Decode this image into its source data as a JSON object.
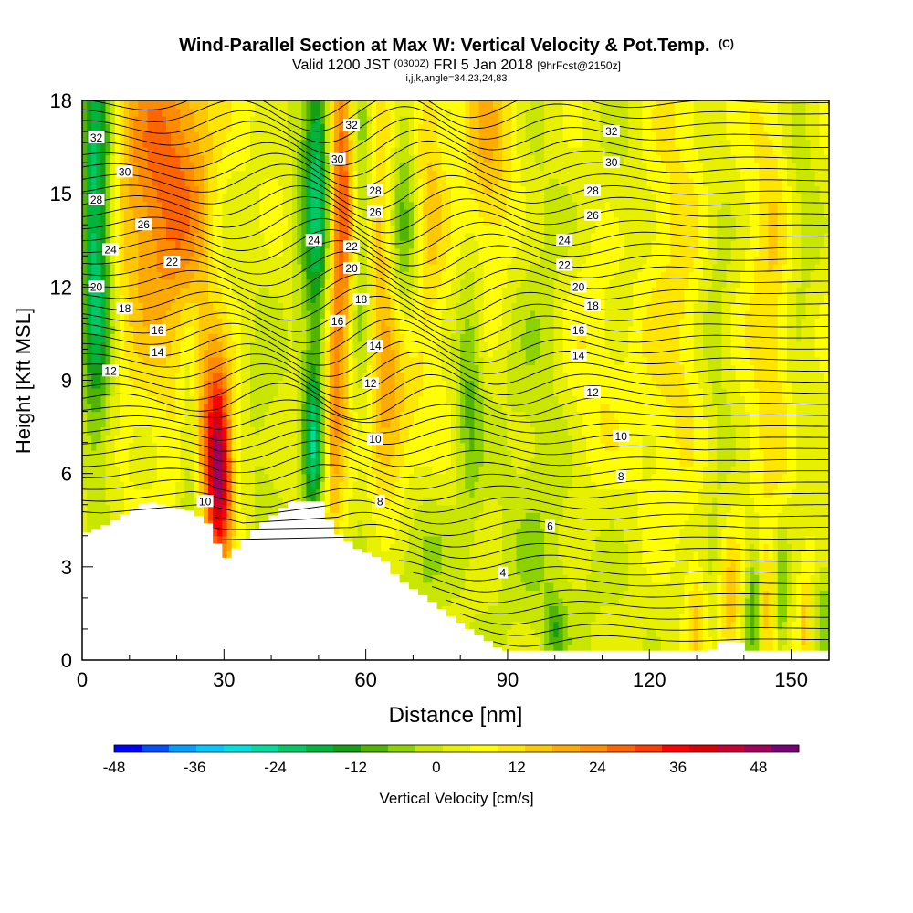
{
  "chart_data": {
    "type": "heatmap",
    "title": "Wind-Parallel Section at Max W: Vertical Velocity & Pot.Temp.",
    "title_units": "(C)",
    "subtitle_valid": "Valid 1200 JST",
    "subtitle_utc": "(0300Z)",
    "subtitle_date": "FRI 5 Jan 2018",
    "subtitle_fcst": "[9hrFcst@2150z]",
    "subtitle_indices": "i,j,k,angle=34,23,24,83",
    "xlabel": "Distance [nm]",
    "ylabel": "Height [Kft MSL]",
    "xlim": [
      0,
      158
    ],
    "ylim": [
      0,
      18
    ],
    "x_ticks": [
      0,
      30,
      60,
      90,
      120,
      150
    ],
    "x_tick_labels": [
      "0",
      "30",
      "60",
      "90",
      "120",
      "150"
    ],
    "y_ticks": [
      0,
      3,
      6,
      9,
      12,
      15,
      18
    ],
    "y_tick_labels": [
      "0",
      "3",
      "6",
      "9",
      "12",
      "15",
      "18"
    ],
    "colorbar": {
      "label": "Vertical Velocity [cm/s]",
      "min": -48,
      "max": 54,
      "step": 4,
      "tick_values": [
        -48,
        -36,
        -24,
        -12,
        0,
        12,
        24,
        36,
        48
      ],
      "tick_labels": [
        "-48",
        "-36",
        "-24",
        "-12",
        "0",
        "12",
        "24",
        "36",
        "48"
      ],
      "colors": [
        "#0000ff",
        "#0050ff",
        "#00a0ff",
        "#00c8ff",
        "#00e0e0",
        "#00dca0",
        "#00c864",
        "#00b43c",
        "#14a014",
        "#50b400",
        "#8cd200",
        "#c8e600",
        "#e6f000",
        "#ffff00",
        "#ffe600",
        "#ffc800",
        "#ffaa00",
        "#ff8c00",
        "#ff6400",
        "#ff3c00",
        "#ff0000",
        "#dc0000",
        "#c80032",
        "#a0005a",
        "#780078"
      ]
    },
    "terrain_kft": [
      {
        "x": 0,
        "h": 4.1
      },
      {
        "x": 5,
        "h": 4.4
      },
      {
        "x": 8,
        "h": 4.7
      },
      {
        "x": 10,
        "h": 4.9
      },
      {
        "x": 13,
        "h": 5.1
      },
      {
        "x": 22,
        "h": 4.8
      },
      {
        "x": 25,
        "h": 4.5
      },
      {
        "x": 27,
        "h": 4.2
      },
      {
        "x": 28,
        "h": 3.5
      },
      {
        "x": 29,
        "h": 3.2
      },
      {
        "x": 31,
        "h": 3.5
      },
      {
        "x": 33,
        "h": 3.8
      },
      {
        "x": 36,
        "h": 4.3
      },
      {
        "x": 40,
        "h": 4.7
      },
      {
        "x": 43,
        "h": 5.1
      },
      {
        "x": 50,
        "h": 5.1
      },
      {
        "x": 52,
        "h": 4.2
      },
      {
        "x": 57,
        "h": 3.6
      },
      {
        "x": 63,
        "h": 3.2
      },
      {
        "x": 66,
        "h": 2.6
      },
      {
        "x": 72,
        "h": 2.0
      },
      {
        "x": 78,
        "h": 1.3
      },
      {
        "x": 84,
        "h": 0.7
      },
      {
        "x": 88,
        "h": 0.3
      },
      {
        "x": 91,
        "h": 0.3
      },
      {
        "x": 132,
        "h": 0.3
      },
      {
        "x": 134,
        "h": 0.6
      },
      {
        "x": 138,
        "h": 0.6
      },
      {
        "x": 140,
        "h": 0.3
      },
      {
        "x": 158,
        "h": 0.3
      }
    ],
    "w_features": [
      {
        "x": 3,
        "z": 14.0,
        "sx": 2.5,
        "sz": 5.0,
        "w": -30
      },
      {
        "x": 18,
        "z": 15.5,
        "sx": 8.0,
        "sz": 4.0,
        "w": 22
      },
      {
        "x": 30,
        "z": 13.0,
        "sx": 3.5,
        "sz": 4.5,
        "w": -6
      },
      {
        "x": 23,
        "z": 7.0,
        "sx": 1.8,
        "sz": 2.5,
        "w": -16
      },
      {
        "x": 29,
        "z": 6.0,
        "sx": 1.8,
        "sz": 2.0,
        "w": 34
      },
      {
        "x": 27,
        "z": 7.5,
        "sx": 3.5,
        "sz": 2.5,
        "w": 18
      },
      {
        "x": 40,
        "z": 8.0,
        "sx": 4.0,
        "sz": 5.0,
        "w": -8
      },
      {
        "x": 45,
        "z": 11.0,
        "sx": 4.0,
        "sz": 5.0,
        "w": 8
      },
      {
        "x": 47,
        "z": 13.5,
        "sx": 3.0,
        "sz": 6.0,
        "w": -12
      },
      {
        "x": 50,
        "z": 15.5,
        "sx": 2.0,
        "sz": 4.0,
        "w": -22
      },
      {
        "x": 49,
        "z": 6.8,
        "sx": 1.5,
        "sz": 2.0,
        "w": -22
      },
      {
        "x": 55,
        "z": 15.0,
        "sx": 2.0,
        "sz": 4.5,
        "w": 26
      },
      {
        "x": 53,
        "z": 7.5,
        "sx": 1.5,
        "sz": 2.5,
        "w": 14
      },
      {
        "x": 59,
        "z": 14.0,
        "sx": 2.0,
        "sz": 5.0,
        "w": -14
      },
      {
        "x": 63,
        "z": 13.0,
        "sx": 2.5,
        "sz": 5.0,
        "w": 12
      },
      {
        "x": 68,
        "z": 13.5,
        "sx": 2.5,
        "sz": 4.5,
        "w": -14
      },
      {
        "x": 73,
        "z": 15.0,
        "sx": 2.5,
        "sz": 4.0,
        "w": 10
      },
      {
        "x": 67,
        "z": 8.0,
        "sx": 3.0,
        "sz": 2.5,
        "w": 16
      },
      {
        "x": 70,
        "z": 3.5,
        "sx": 5.0,
        "sz": 2.0,
        "w": -8
      },
      {
        "x": 82,
        "z": 9.0,
        "sx": 2.0,
        "sz": 3.0,
        "w": -12
      },
      {
        "x": 86,
        "z": 16.5,
        "sx": 4.0,
        "sz": 3.0,
        "w": 12
      },
      {
        "x": 95,
        "z": 7.5,
        "sx": 8.0,
        "sz": 5.0,
        "w": -4
      },
      {
        "x": 98,
        "z": 12.0,
        "sx": 5.0,
        "sz": 6.0,
        "w": -4
      },
      {
        "x": 115,
        "z": 15.0,
        "sx": 5.0,
        "sz": 6.0,
        "w": -6
      },
      {
        "x": 110,
        "z": 2.0,
        "sx": 25.0,
        "sz": 2.5,
        "w": -4
      },
      {
        "x": 108,
        "z": 9.5,
        "sx": 6.0,
        "sz": 3.0,
        "w": 6
      },
      {
        "x": 125,
        "z": 12.0,
        "sx": 8.0,
        "sz": 7.0,
        "w": 6
      },
      {
        "x": 134,
        "z": 11.0,
        "sx": 3.0,
        "sz": 6.0,
        "w": -8
      },
      {
        "x": 146,
        "z": 12.0,
        "sx": 3.0,
        "sz": 6.0,
        "w": 8
      },
      {
        "x": 152,
        "z": 15.0,
        "sx": 3.0,
        "sz": 6.0,
        "w": -6
      },
      {
        "x": 130,
        "z": 1.5,
        "sx": 1.5,
        "sz": 1.5,
        "w": 10
      },
      {
        "x": 137,
        "z": 1.8,
        "sx": 1.5,
        "sz": 1.5,
        "w": 14
      },
      {
        "x": 142,
        "z": 1.8,
        "sx": 1.2,
        "sz": 1.5,
        "w": -14
      },
      {
        "x": 145,
        "z": 1.8,
        "sx": 1.0,
        "sz": 1.5,
        "w": 10
      },
      {
        "x": 148,
        "z": 1.8,
        "sx": 1.0,
        "sz": 1.5,
        "w": -12
      },
      {
        "x": 153,
        "z": 1.2,
        "sx": 1.0,
        "sz": 1.2,
        "w": 12
      },
      {
        "x": 157,
        "z": 1.5,
        "sx": 1.5,
        "sz": 1.5,
        "w": -10
      },
      {
        "x": 100,
        "z": 1.0,
        "sx": 1.5,
        "sz": 0.8,
        "w": -10
      }
    ],
    "theta_labels": [
      {
        "x": 3,
        "z": 16.8,
        "text": "32"
      },
      {
        "x": 9,
        "z": 15.7,
        "text": "30"
      },
      {
        "x": 3,
        "z": 14.8,
        "text": "28"
      },
      {
        "x": 13,
        "z": 14.0,
        "text": "26"
      },
      {
        "x": 6,
        "z": 13.2,
        "text": "24"
      },
      {
        "x": 19,
        "z": 12.8,
        "text": "22"
      },
      {
        "x": 3,
        "z": 12.0,
        "text": "20"
      },
      {
        "x": 9,
        "z": 11.3,
        "text": "18"
      },
      {
        "x": 16,
        "z": 10.6,
        "text": "16"
      },
      {
        "x": 16,
        "z": 9.9,
        "text": "14"
      },
      {
        "x": 6,
        "z": 9.3,
        "text": "12"
      },
      {
        "x": 26,
        "z": 5.1,
        "text": "10"
      },
      {
        "x": 57,
        "z": 17.2,
        "text": "32"
      },
      {
        "x": 54,
        "z": 16.1,
        "text": "30"
      },
      {
        "x": 62,
        "z": 15.1,
        "text": "28"
      },
      {
        "x": 62,
        "z": 14.4,
        "text": "26"
      },
      {
        "x": 49,
        "z": 13.5,
        "text": "24"
      },
      {
        "x": 57,
        "z": 13.3,
        "text": "22"
      },
      {
        "x": 57,
        "z": 12.6,
        "text": "20"
      },
      {
        "x": 59,
        "z": 11.6,
        "text": "18"
      },
      {
        "x": 54,
        "z": 10.9,
        "text": "16"
      },
      {
        "x": 62,
        "z": 10.1,
        "text": "14"
      },
      {
        "x": 61,
        "z": 8.9,
        "text": "12"
      },
      {
        "x": 62,
        "z": 7.1,
        "text": "10"
      },
      {
        "x": 63,
        "z": 5.1,
        "text": "8"
      },
      {
        "x": 112,
        "z": 17.0,
        "text": "32"
      },
      {
        "x": 112,
        "z": 16.0,
        "text": "30"
      },
      {
        "x": 108,
        "z": 15.1,
        "text": "28"
      },
      {
        "x": 108,
        "z": 14.3,
        "text": "26"
      },
      {
        "x": 102,
        "z": 13.5,
        "text": "24"
      },
      {
        "x": 102,
        "z": 12.7,
        "text": "22"
      },
      {
        "x": 105,
        "z": 12.0,
        "text": "20"
      },
      {
        "x": 108,
        "z": 11.4,
        "text": "18"
      },
      {
        "x": 105,
        "z": 10.6,
        "text": "16"
      },
      {
        "x": 105,
        "z": 9.8,
        "text": "14"
      },
      {
        "x": 108,
        "z": 8.6,
        "text": "12"
      },
      {
        "x": 114,
        "z": 7.2,
        "text": "10"
      },
      {
        "x": 114,
        "z": 5.9,
        "text": "8"
      },
      {
        "x": 99,
        "z": 4.3,
        "text": "6"
      },
      {
        "x": 89,
        "z": 2.8,
        "text": "4"
      }
    ]
  }
}
